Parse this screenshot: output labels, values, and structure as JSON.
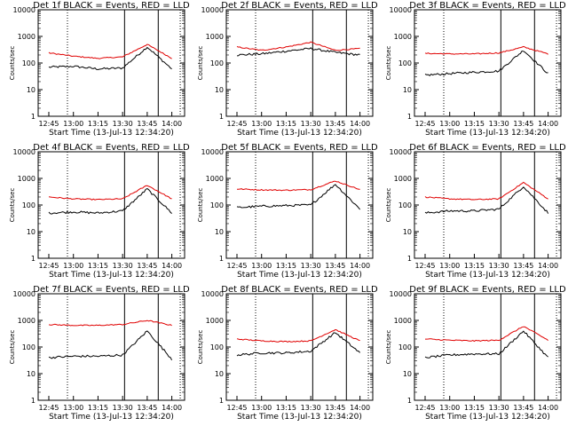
{
  "legend_text": "BLACK = Events, RED = LLD",
  "colors": {
    "events": "#000000",
    "lld": "#e00000"
  },
  "chart_data": [
    {
      "type": "line",
      "title": "Det 1f BLACK = Events, RED = LLD",
      "xlabel": "Start Time (13-Jul-13 12:34:20)",
      "ylabel": "Counts/sec",
      "yscale": "log",
      "ylim": [
        1,
        10000
      ],
      "x_tick_labels": [
        "12:45",
        "13:00",
        "13:15",
        "13:30",
        "13:45",
        "14:00"
      ],
      "y_tick_labels": [
        "1",
        "10",
        "100",
        "1000",
        "10000"
      ],
      "x": [
        "12:45",
        "13:00",
        "13:15",
        "13:30",
        "13:45",
        "14:00"
      ],
      "series": [
        {
          "key": "events",
          "values": [
            70,
            75,
            60,
            65,
            400,
            60
          ]
        },
        {
          "key": "lld",
          "values": [
            240,
            180,
            150,
            170,
            500,
            150
          ]
        }
      ]
    },
    {
      "type": "line",
      "title": "Det 2f BLACK = Events, RED = LLD",
      "xlabel": "Start Time (13-Jul-13 12:34:20)",
      "ylabel": "Counts/sec",
      "yscale": "log",
      "ylim": [
        1,
        10000
      ],
      "x_tick_labels": [
        "12:45",
        "13:00",
        "13:15",
        "13:30",
        "13:45",
        "14:00"
      ],
      "y_tick_labels": [
        "1",
        "10",
        "100",
        "1000",
        "10000"
      ],
      "x": [
        "12:45",
        "13:00",
        "13:15",
        "13:30",
        "13:45",
        "14:00"
      ],
      "series": [
        {
          "key": "events",
          "values": [
            200,
            220,
            280,
            350,
            250,
            200
          ]
        },
        {
          "key": "lld",
          "values": [
            400,
            300,
            400,
            600,
            300,
            350
          ]
        }
      ]
    },
    {
      "type": "line",
      "title": "Det 3f BLACK = Events, RED = LLD",
      "xlabel": "Start Time (13-Jul-13 12:34:20)",
      "ylabel": "Counts/sec",
      "yscale": "log",
      "ylim": [
        1,
        10000
      ],
      "x_tick_labels": [
        "12:45",
        "13:00",
        "13:15",
        "13:30",
        "13:45",
        "14:00"
      ],
      "y_tick_labels": [
        "1",
        "10",
        "100",
        "1000",
        "10000"
      ],
      "x": [
        "12:45",
        "13:00",
        "13:15",
        "13:30",
        "13:45",
        "14:00"
      ],
      "series": [
        {
          "key": "events",
          "values": [
            35,
            40,
            45,
            50,
            300,
            40
          ]
        },
        {
          "key": "lld",
          "values": [
            230,
            220,
            220,
            240,
            400,
            220
          ]
        }
      ]
    },
    {
      "type": "line",
      "title": "Det 4f BLACK = Events, RED = LLD",
      "xlabel": "Start Time (13-Jul-13 12:34:20)",
      "ylabel": "Counts/sec",
      "yscale": "log",
      "ylim": [
        1,
        10000
      ],
      "x_tick_labels": [
        "12:45",
        "13:00",
        "13:15",
        "13:30",
        "13:45",
        "14:00"
      ],
      "y_tick_labels": [
        "1",
        "10",
        "100",
        "1000",
        "10000"
      ],
      "x": [
        "12:45",
        "13:00",
        "13:15",
        "13:30",
        "13:45",
        "14:00"
      ],
      "series": [
        {
          "key": "events",
          "values": [
            50,
            55,
            50,
            60,
            400,
            50
          ]
        },
        {
          "key": "lld",
          "values": [
            200,
            170,
            160,
            170,
            550,
            170
          ]
        }
      ]
    },
    {
      "type": "line",
      "title": "Det 5f BLACK = Events, RED = LLD",
      "xlabel": "Start Time (13-Jul-13 12:34:20)",
      "ylabel": "Counts/sec",
      "yscale": "log",
      "ylim": [
        1,
        10000
      ],
      "x_tick_labels": [
        "12:45",
        "13:00",
        "13:15",
        "13:30",
        "13:45",
        "14:00"
      ],
      "y_tick_labels": [
        "1",
        "10",
        "100",
        "1000",
        "10000"
      ],
      "x": [
        "12:45",
        "13:00",
        "13:15",
        "13:30",
        "13:45",
        "14:00"
      ],
      "series": [
        {
          "key": "events",
          "values": [
            80,
            90,
            95,
            100,
            600,
            70
          ]
        },
        {
          "key": "lld",
          "values": [
            400,
            370,
            360,
            380,
            800,
            380
          ]
        }
      ]
    },
    {
      "type": "line",
      "title": "Det 6f BLACK = Events, RED = LLD",
      "xlabel": "Start Time (13-Jul-13 12:34:20)",
      "ylabel": "Counts/sec",
      "yscale": "log",
      "ylim": [
        1,
        10000
      ],
      "x_tick_labels": [
        "12:45",
        "13:00",
        "13:15",
        "13:30",
        "13:45",
        "14:00"
      ],
      "y_tick_labels": [
        "1",
        "10",
        "100",
        "1000",
        "10000"
      ],
      "x": [
        "12:45",
        "13:00",
        "13:15",
        "13:30",
        "13:45",
        "14:00"
      ],
      "series": [
        {
          "key": "events",
          "values": [
            50,
            60,
            60,
            70,
            500,
            50
          ]
        },
        {
          "key": "lld",
          "values": [
            200,
            170,
            160,
            170,
            700,
            170
          ]
        }
      ]
    },
    {
      "type": "line",
      "title": "Det 7f BLACK = Events, RED = LLD",
      "xlabel": "Start Time (13-Jul-13 12:34:20)",
      "ylabel": "Counts/sec",
      "yscale": "log",
      "ylim": [
        1,
        10000
      ],
      "x_tick_labels": [
        "12:45",
        "13:00",
        "13:15",
        "13:30",
        "13:45",
        "14:00"
      ],
      "y_tick_labels": [
        "1",
        "10",
        "100",
        "1000",
        "10000"
      ],
      "x": [
        "12:45",
        "13:00",
        "13:15",
        "13:30",
        "13:45",
        "14:00"
      ],
      "series": [
        {
          "key": "events",
          "values": [
            40,
            45,
            45,
            50,
            400,
            35
          ]
        },
        {
          "key": "lld",
          "values": [
            700,
            650,
            650,
            700,
            1000,
            650
          ]
        }
      ]
    },
    {
      "type": "line",
      "title": "Det 8f BLACK = Events, RED = LLD",
      "xlabel": "Start Time (13-Jul-13 12:34:20)",
      "ylabel": "Counts/sec",
      "yscale": "log",
      "ylim": [
        1,
        10000
      ],
      "x_tick_labels": [
        "12:45",
        "13:00",
        "13:15",
        "13:30",
        "13:45",
        "14:00"
      ],
      "y_tick_labels": [
        "1",
        "10",
        "100",
        "1000",
        "10000"
      ],
      "x": [
        "12:45",
        "13:00",
        "13:15",
        "13:30",
        "13:45",
        "14:00"
      ],
      "series": [
        {
          "key": "events",
          "values": [
            50,
            60,
            60,
            70,
            350,
            60
          ]
        },
        {
          "key": "lld",
          "values": [
            200,
            170,
            160,
            170,
            450,
            170
          ]
        }
      ]
    },
    {
      "type": "line",
      "title": "Det 9f BLACK = Events, RED = LLD",
      "xlabel": "Start Time (13-Jul-13 12:34:20)",
      "ylabel": "Counts/sec",
      "yscale": "log",
      "ylim": [
        1,
        10000
      ],
      "x_tick_labels": [
        "12:45",
        "13:00",
        "13:15",
        "13:30",
        "13:45",
        "14:00"
      ],
      "y_tick_labels": [
        "1",
        "10",
        "100",
        "1000",
        "10000"
      ],
      "x": [
        "12:45",
        "13:00",
        "13:15",
        "13:30",
        "13:45",
        "14:00"
      ],
      "series": [
        {
          "key": "events",
          "values": [
            40,
            50,
            55,
            55,
            400,
            40
          ]
        },
        {
          "key": "lld",
          "values": [
            200,
            180,
            170,
            180,
            600,
            180
          ]
        }
      ]
    }
  ]
}
